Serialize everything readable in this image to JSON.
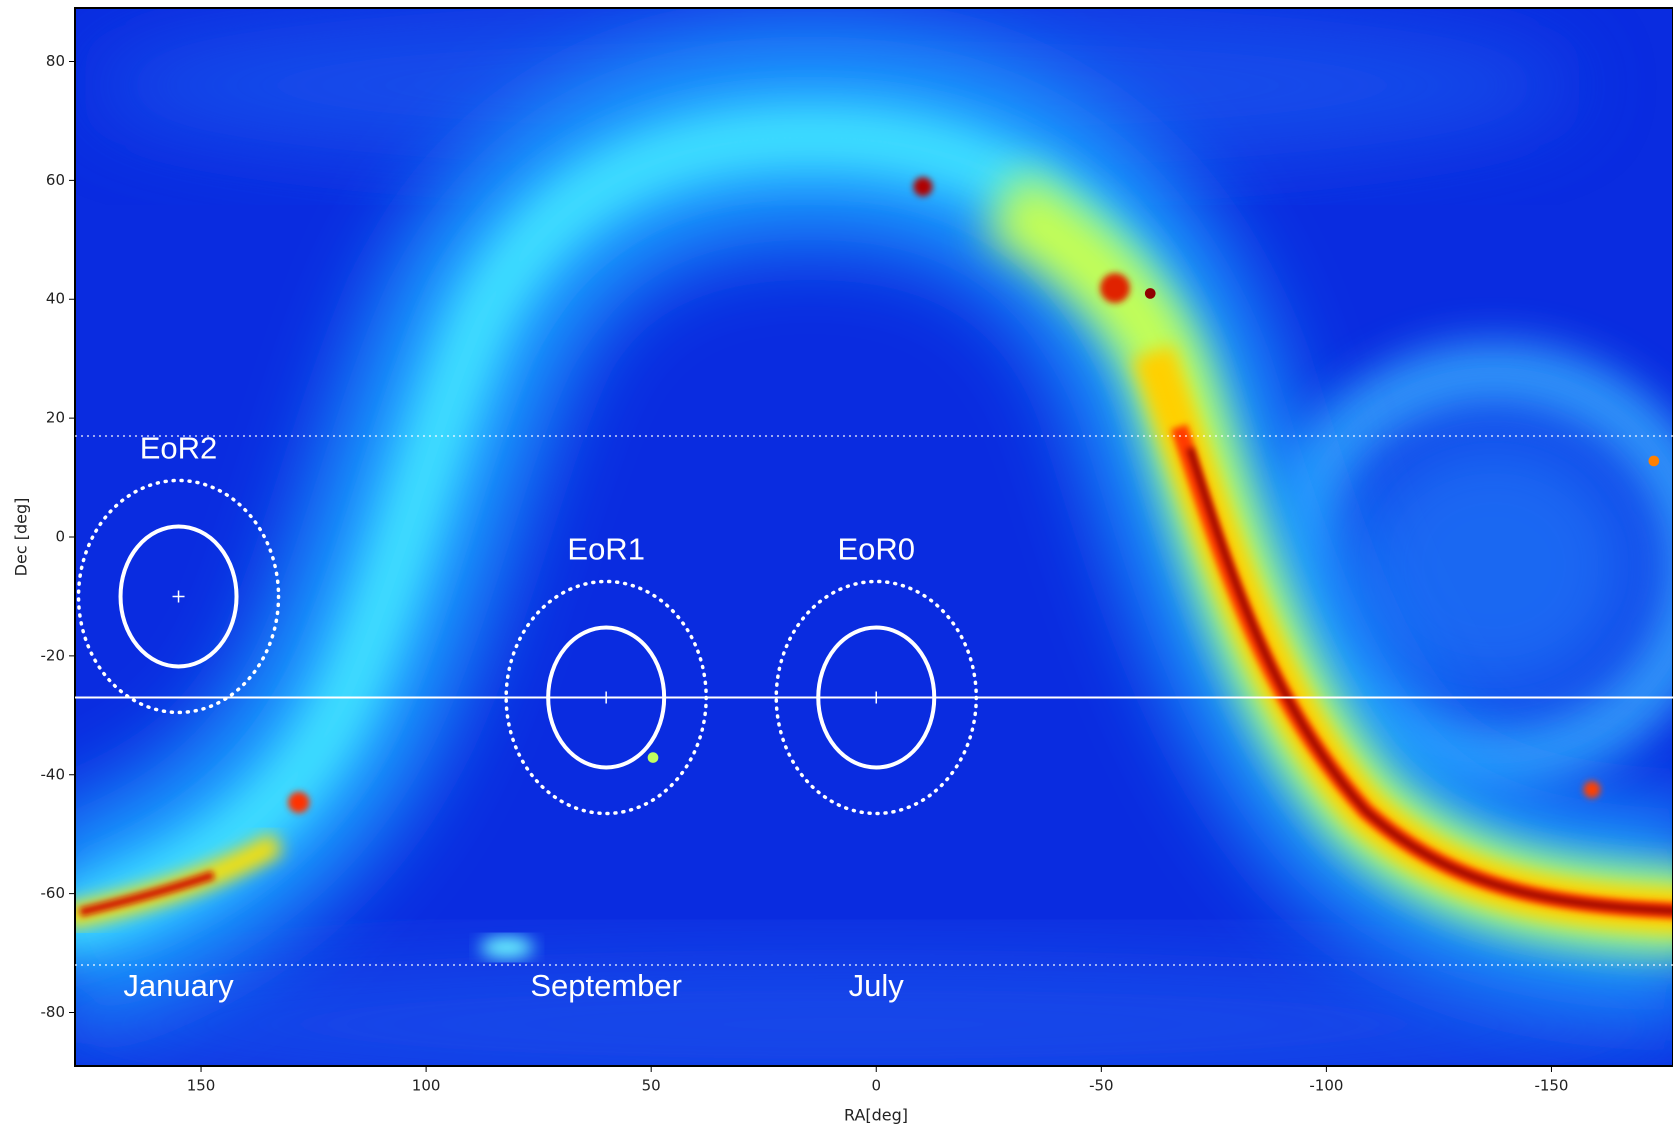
{
  "chart_data": {
    "type": "skymap",
    "x_label": "RA[deg]",
    "y_label": "Dec [deg]",
    "xlim": [
      178,
      -177
    ],
    "ylim": [
      -89,
      89
    ],
    "xticks": [
      150,
      100,
      50,
      0,
      -50,
      -100,
      -150
    ],
    "yticks": [
      80,
      60,
      40,
      20,
      0,
      -20,
      -40,
      -60,
      -80
    ],
    "fields": [
      {
        "name": "EoR2",
        "ra": 155,
        "dec": -10,
        "month": "January"
      },
      {
        "name": "EoR1",
        "ra": 60,
        "dec": -27,
        "month": "September"
      },
      {
        "name": "EoR0",
        "ra": 0,
        "dec": -27,
        "month": "July"
      }
    ],
    "hlines": [
      {
        "dec": -27,
        "style": "solid"
      },
      {
        "dec": 17,
        "style": "dotted"
      },
      {
        "dec": -72,
        "style": "dotted"
      }
    ]
  }
}
